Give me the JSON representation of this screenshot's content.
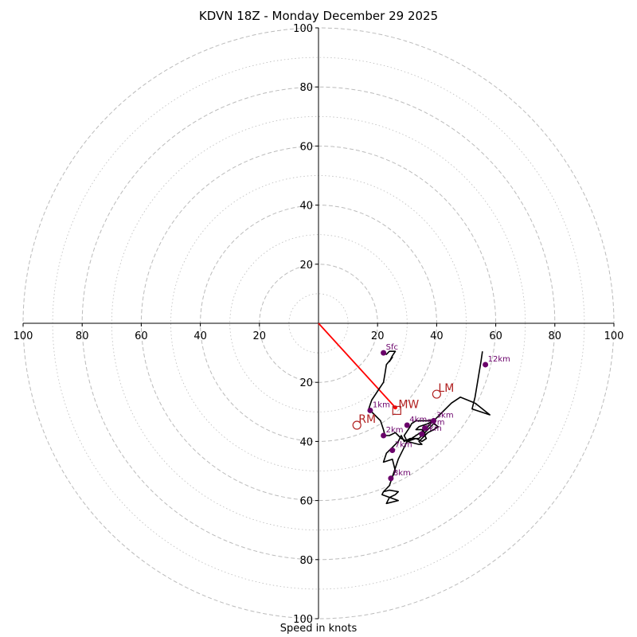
{
  "chart_data": {
    "type": "hodograph",
    "title": "KDVN 18Z - Monday December 29 2025",
    "xlabel": "Speed in knots",
    "range": [
      -100,
      100
    ],
    "ring_major": [
      20,
      40,
      60,
      80,
      100
    ],
    "ring_minor": [
      10,
      30,
      50,
      70,
      90
    ],
    "grid": true,
    "ticks": {
      "x": [
        {
          "v": -100,
          "label": "100"
        },
        {
          "v": -80,
          "label": "80"
        },
        {
          "v": -60,
          "label": "60"
        },
        {
          "v": -40,
          "label": "40"
        },
        {
          "v": -20,
          "label": "20"
        },
        {
          "v": 20,
          "label": "20"
        },
        {
          "v": 40,
          "label": "40"
        },
        {
          "v": 60,
          "label": "60"
        },
        {
          "v": 80,
          "label": "80"
        },
        {
          "v": 100,
          "label": "100"
        }
      ],
      "y": [
        {
          "v": 100,
          "label": "100"
        },
        {
          "v": 80,
          "label": "80"
        },
        {
          "v": 60,
          "label": "60"
        },
        {
          "v": 40,
          "label": "40"
        },
        {
          "v": 20,
          "label": "20"
        },
        {
          "v": -20,
          "label": "20"
        },
        {
          "v": -40,
          "label": "40"
        },
        {
          "v": -60,
          "label": "60"
        },
        {
          "v": -80,
          "label": "80"
        },
        {
          "v": -100,
          "label": "100"
        }
      ]
    },
    "trace": [
      [
        22,
        -10
      ],
      [
        23,
        -10.5
      ],
      [
        24,
        -9.5
      ],
      [
        26,
        -9.5
      ],
      [
        25,
        -11
      ],
      [
        24,
        -13
      ],
      [
        25,
        -11.5
      ],
      [
        23,
        -14
      ],
      [
        22.5,
        -17
      ],
      [
        22,
        -20
      ],
      [
        20,
        -23
      ],
      [
        18,
        -26
      ],
      [
        17,
        -29
      ],
      [
        19,
        -31
      ],
      [
        21,
        -33
      ],
      [
        22,
        -36
      ],
      [
        22.5,
        -38
      ],
      [
        24,
        -38
      ],
      [
        26,
        -37
      ],
      [
        27,
        -38
      ],
      [
        28,
        -39
      ],
      [
        30,
        -40
      ],
      [
        29,
        -38
      ],
      [
        31,
        -35
      ],
      [
        31.5,
        -34
      ],
      [
        33,
        -33
      ],
      [
        35,
        -33
      ],
      [
        39,
        -33
      ],
      [
        37,
        -34
      ],
      [
        34,
        -35
      ],
      [
        33,
        -36
      ],
      [
        35,
        -36
      ],
      [
        36,
        -37
      ],
      [
        36,
        -38
      ],
      [
        36.5,
        -39
      ],
      [
        35,
        -40
      ],
      [
        33,
        -39
      ],
      [
        30,
        -40
      ],
      [
        34,
        -41
      ],
      [
        35,
        -41
      ],
      [
        34,
        -40
      ],
      [
        35,
        -39
      ],
      [
        36,
        -38
      ],
      [
        37,
        -37
      ],
      [
        39,
        -36
      ],
      [
        40.5,
        -35
      ],
      [
        39,
        -34
      ],
      [
        37,
        -36
      ],
      [
        35,
        -38
      ],
      [
        34,
        -39
      ],
      [
        33,
        -39
      ],
      [
        31,
        -39
      ],
      [
        29,
        -40
      ],
      [
        28,
        -38
      ],
      [
        27,
        -40
      ],
      [
        25,
        -42
      ],
      [
        23,
        -44
      ],
      [
        22,
        -47
      ],
      [
        25,
        -46
      ],
      [
        26,
        -50
      ],
      [
        25,
        -52
      ],
      [
        24,
        -55
      ],
      [
        22,
        -57
      ],
      [
        21.5,
        -58
      ],
      [
        27,
        -60
      ],
      [
        23,
        -61
      ],
      [
        24,
        -59
      ],
      [
        26,
        -58
      ],
      [
        27,
        -57
      ],
      [
        24,
        -56.5
      ],
      [
        22,
        -57
      ],
      [
        24,
        -55
      ],
      [
        27,
        -46
      ],
      [
        29,
        -42
      ],
      [
        30,
        -40
      ],
      [
        36,
        -36
      ],
      [
        39,
        -33
      ],
      [
        42,
        -30
      ],
      [
        45,
        -27
      ],
      [
        48,
        -25
      ],
      [
        53,
        -27
      ],
      [
        58,
        -31
      ],
      [
        52,
        -29
      ],
      [
        53,
        -25
      ],
      [
        54,
        -19
      ],
      [
        55,
        -13
      ],
      [
        55.5,
        -9.5
      ]
    ],
    "levels": [
      {
        "label": "Sfc",
        "u": 22,
        "v": -10
      },
      {
        "label": "1km",
        "u": 17.5,
        "v": -29.5
      },
      {
        "label": "2km",
        "u": 22,
        "v": -38
      },
      {
        "label": "3km",
        "u": 39,
        "v": -33
      },
      {
        "label": "4km",
        "u": 30,
        "v": -34.5
      },
      {
        "label": "5km",
        "u": 36,
        "v": -35.5
      },
      {
        "label": "6km",
        "u": 35,
        "v": -37.5
      },
      {
        "label": "7km",
        "u": 25,
        "v": -43
      },
      {
        "label": "8km",
        "u": 24.5,
        "v": -52.5
      },
      {
        "label": "12km",
        "u": 56.5,
        "v": -14
      }
    ],
    "storm_motion": [
      {
        "label": "LM",
        "u": 40,
        "v": -24,
        "marker": "circle"
      },
      {
        "label": "RM",
        "u": 13,
        "v": -34.5,
        "marker": "circle"
      },
      {
        "label": "MW",
        "u": 26.5,
        "v": -29.5,
        "marker": "square"
      }
    ],
    "shear_vector": {
      "from": [
        0,
        0
      ],
      "to": [
        26,
        -28.5
      ]
    },
    "colors": {
      "trace": "#000000",
      "levels": "#6a006a",
      "markers": "#b22222",
      "shear": "#ff0000",
      "grid": "#bbbbbb",
      "axes": "#000000"
    }
  }
}
